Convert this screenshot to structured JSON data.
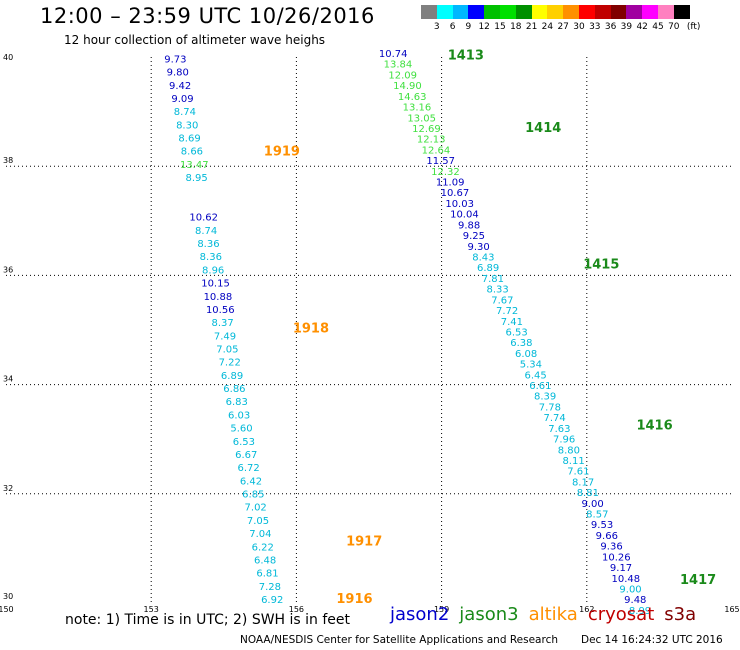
{
  "header": {
    "title": "12:00 – 23:59 UTC 10/26/2016",
    "subtitle": "12 hour collection of altimeter wave heighs"
  },
  "legend": {
    "colors": [
      "#808080",
      "#00ffff",
      "#00b8ff",
      "#0000ff",
      "#00c000",
      "#00e000",
      "#009000",
      "#ffff00",
      "#ffd000",
      "#ff9000",
      "#ff0000",
      "#c00000",
      "#800000",
      "#a000a0",
      "#ff00ff",
      "#ff80c0",
      "#000000"
    ],
    "labels": [
      "3",
      "6",
      "9",
      "12",
      "15",
      "18",
      "21",
      "24",
      "27",
      "30",
      "33",
      "36",
      "39",
      "42",
      "45",
      "70",
      "(ft)"
    ]
  },
  "chart_data": {
    "type": "scatter",
    "title": "12:00 – 23:59 UTC 10/26/2016",
    "xlim": [
      150,
      165
    ],
    "ylim": [
      30,
      40
    ],
    "x_ticks": [
      "150",
      "153",
      "156",
      "159",
      "162",
      "165"
    ],
    "y_ticks": [
      "30",
      "32",
      "34",
      "36",
      "38",
      "40"
    ],
    "grid": true,
    "value_colors": {
      "cyan": "#00b8d8",
      "blue": "#0000c0",
      "green": "#40e040",
      "dgreen": "#1a8a1a",
      "orange": "#ff9000",
      "red": "#c00000"
    },
    "tracks": [
      {
        "x0": 153.5,
        "y0": 39.9,
        "x1": 155.5,
        "y1": 30.0,
        "values": [
          [
            "9.73",
            "blue"
          ],
          [
            "9.80",
            "blue"
          ],
          [
            "9.42",
            "blue"
          ],
          [
            "9.09",
            "blue"
          ],
          [
            "8.74",
            "cyan"
          ],
          [
            "8.30",
            "cyan"
          ],
          [
            "8.69",
            "cyan"
          ],
          [
            "8.66",
            "cyan"
          ],
          [
            "13.47",
            "green"
          ],
          [
            "8.95",
            "cyan"
          ],
          [],
          [],
          [
            "10.62",
            "blue"
          ],
          [
            "8.74",
            "cyan"
          ],
          [
            "8.36",
            "cyan"
          ],
          [
            "8.36",
            "cyan"
          ],
          [
            "8.96",
            "cyan"
          ],
          [
            "10.15",
            "blue"
          ],
          [
            "10.88",
            "blue"
          ],
          [
            "10.56",
            "blue"
          ],
          [
            "8.37",
            "cyan"
          ],
          [
            "7.49",
            "cyan"
          ],
          [
            "7.05",
            "cyan"
          ],
          [
            "7.22",
            "cyan"
          ],
          [
            "6.89",
            "cyan"
          ],
          [
            "6.86",
            "cyan"
          ],
          [
            "6.83",
            "cyan"
          ],
          [
            "6.03",
            "cyan"
          ],
          [
            "5.60",
            "cyan"
          ],
          [
            "6.53",
            "cyan"
          ],
          [
            "6.67",
            "cyan"
          ],
          [
            "6.72",
            "cyan"
          ],
          [
            "6.42",
            "cyan"
          ],
          [
            "6.85",
            "cyan"
          ],
          [
            "7.02",
            "cyan"
          ],
          [
            "7.05",
            "cyan"
          ],
          [
            "7.04",
            "cyan"
          ],
          [
            "6.22",
            "cyan"
          ],
          [
            "6.48",
            "cyan"
          ],
          [
            "6.81",
            "cyan"
          ],
          [
            "7.28",
            "cyan"
          ],
          [
            "6.92",
            "cyan"
          ]
        ]
      },
      {
        "x0": 158.0,
        "y0": 40.0,
        "x1": 163.1,
        "y1": 29.8,
        "values": [
          [
            "10.74",
            "blue"
          ],
          [
            "13.84",
            "green"
          ],
          [
            "12.09",
            "green"
          ],
          [
            "14.90",
            "green"
          ],
          [
            "14.63",
            "green"
          ],
          [
            "13.16",
            "green"
          ],
          [
            "13.05",
            "green"
          ],
          [
            "12.69",
            "green"
          ],
          [
            "12.13",
            "green"
          ],
          [
            "12.64",
            "green"
          ],
          [
            "11.57",
            "blue"
          ],
          [
            "12.32",
            "green"
          ],
          [
            "11.09",
            "blue"
          ],
          [
            "10.67",
            "blue"
          ],
          [
            "10.03",
            "blue"
          ],
          [
            "10.04",
            "blue"
          ],
          [
            "9.88",
            "blue"
          ],
          [
            "9.25",
            "blue"
          ],
          [
            "9.30",
            "blue"
          ],
          [
            "8.43",
            "cyan"
          ],
          [
            "6.89",
            "cyan"
          ],
          [
            "7.81",
            "cyan"
          ],
          [
            "8.33",
            "cyan"
          ],
          [
            "7.67",
            "cyan"
          ],
          [
            "7.72",
            "cyan"
          ],
          [
            "7.41",
            "cyan"
          ],
          [
            "6.53",
            "cyan"
          ],
          [
            "6.38",
            "cyan"
          ],
          [
            "6.08",
            "cyan"
          ],
          [
            "5.34",
            "cyan"
          ],
          [
            "6.45",
            "cyan"
          ],
          [
            "6.61",
            "cyan"
          ],
          [
            "8.39",
            "cyan"
          ],
          [
            "7.78",
            "cyan"
          ],
          [
            "7.74",
            "cyan"
          ],
          [
            "7.63",
            "cyan"
          ],
          [
            "7.96",
            "cyan"
          ],
          [
            "8.80",
            "cyan"
          ],
          [
            "8.11",
            "cyan"
          ],
          [
            "7.61",
            "cyan"
          ],
          [
            "8.17",
            "cyan"
          ],
          [
            "8.81",
            "cyan"
          ],
          [
            "9.00",
            "blue"
          ],
          [
            "8.57",
            "cyan"
          ],
          [
            "9.53",
            "blue"
          ],
          [
            "9.66",
            "blue"
          ],
          [
            "9.36",
            "blue"
          ],
          [
            "10.26",
            "blue"
          ],
          [
            "9.17",
            "blue"
          ],
          [
            "10.48",
            "blue"
          ],
          [
            "9.00",
            "cyan"
          ],
          [
            "9.48",
            "blue"
          ],
          [
            "8.99",
            "cyan"
          ]
        ]
      }
    ],
    "pass_labels": [
      {
        "text": "1413",
        "x": 159.5,
        "y": 39.95,
        "color": "dgreen"
      },
      {
        "text": "1414",
        "x": 161.1,
        "y": 38.63,
        "color": "dgreen"
      },
      {
        "text": "1919",
        "x": 155.7,
        "y": 38.2,
        "color": "orange"
      },
      {
        "text": "1415",
        "x": 162.3,
        "y": 36.13,
        "color": "dgreen"
      },
      {
        "text": "1918",
        "x": 156.3,
        "y": 34.95,
        "color": "orange"
      },
      {
        "text": "1416",
        "x": 163.4,
        "y": 33.18,
        "color": "dgreen"
      },
      {
        "text": "1917",
        "x": 157.4,
        "y": 31.05,
        "color": "orange"
      },
      {
        "text": "1417",
        "x": 164.3,
        "y": 30.35,
        "color": "dgreen"
      },
      {
        "text": "1916",
        "x": 157.2,
        "y": 30.0,
        "color": "orange"
      }
    ]
  },
  "footer": {
    "note": "note: 1) Time is in UTC; 2) SWH is in feet",
    "satellites": [
      {
        "name": "jason2",
        "color": "#0000cc"
      },
      {
        "name": "jason3",
        "color": "#1a8a1a"
      },
      {
        "name": "altika",
        "color": "#ff9000"
      },
      {
        "name": "cryosat",
        "color": "#c00000"
      },
      {
        "name": "s3a",
        "color": "#800000"
      }
    ],
    "credit": "NOAA/NESDIS Center for Satellite Applications and Research",
    "timestamp": "Dec 14 16:24:32 UTC 2016"
  }
}
